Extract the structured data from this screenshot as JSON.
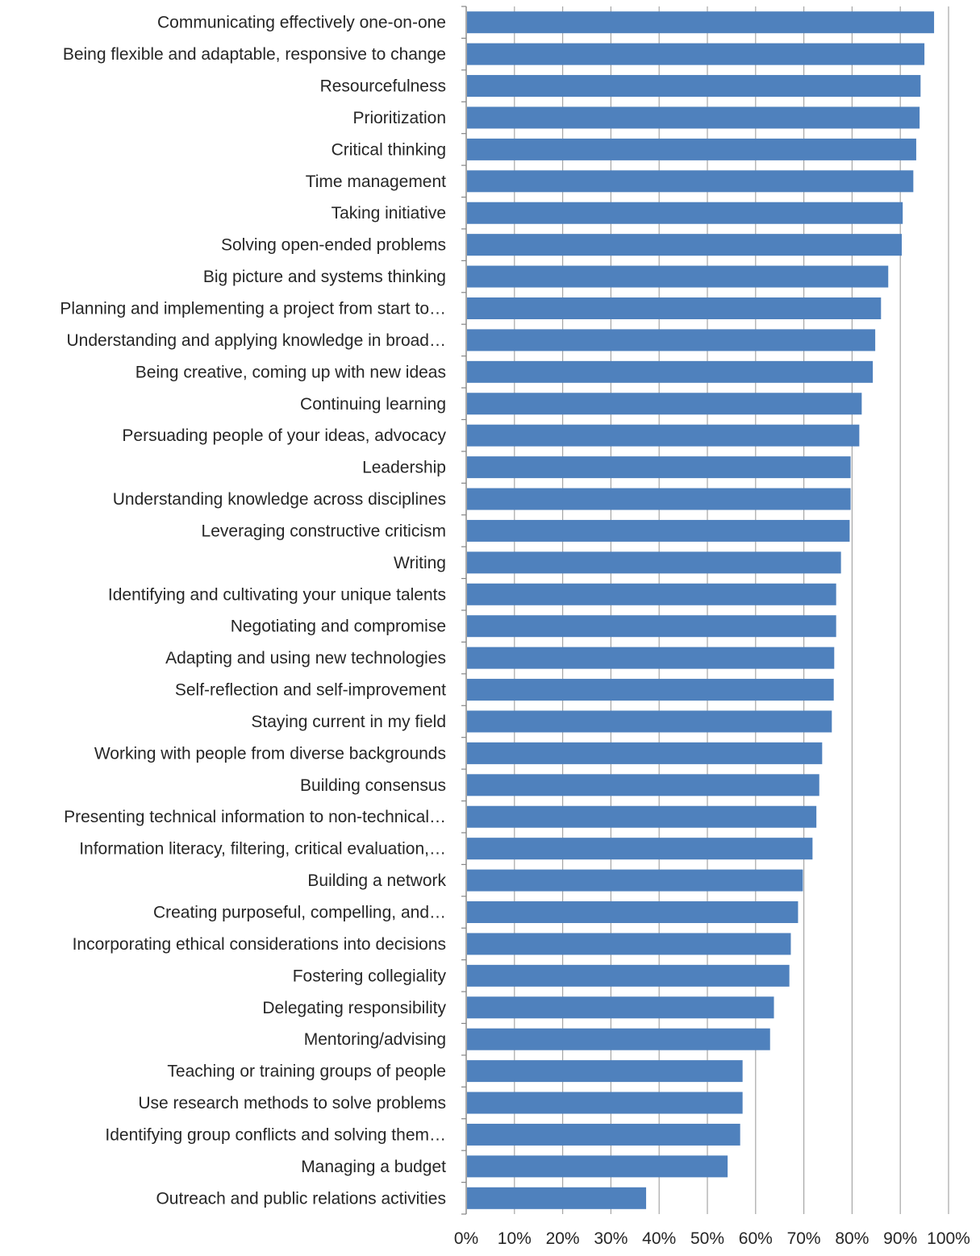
{
  "colors": {
    "bar": "#4F81BD",
    "grid": "#A6A6A6",
    "axis": "#868686",
    "text": "#262626"
  },
  "chart_data": {
    "type": "bar",
    "orientation": "horizontal",
    "title": "",
    "xlabel": "",
    "ylabel": "",
    "xlim": [
      0,
      100
    ],
    "x_ticks": [
      "0%",
      "10%",
      "20%",
      "30%",
      "40%",
      "50%",
      "60%",
      "70%",
      "80%",
      "90%",
      "100%"
    ],
    "grid": true,
    "legend": "none",
    "categories": [
      "Communicating effectively one-on-one",
      "Being flexible and adaptable, responsive to change",
      "Resourcefulness",
      "Prioritization",
      "Critical thinking",
      "Time management",
      "Taking initiative",
      "Solving open-ended problems",
      "Big picture and systems thinking",
      "Planning and implementing a project from start to…",
      "Understanding and applying knowledge in broad…",
      "Being creative, coming up with new ideas",
      "Continuing learning",
      "Persuading people of your ideas, advocacy",
      "Leadership",
      "Understanding knowledge across disciplines",
      "Leveraging constructive criticism",
      "Writing",
      "Identifying and cultivating your unique talents",
      "Negotiating and compromise",
      "Adapting and using new technologies",
      "Self-reflection and self-improvement",
      "Staying current in my field",
      "Working with people from diverse backgrounds",
      "Building consensus",
      "Presenting technical information to non-technical…",
      "Information literacy, filtering, critical evaluation,…",
      "Building a network",
      "Creating purposeful, compelling, and…",
      "Incorporating ethical considerations into decisions",
      "Fostering collegiality",
      "Delegating responsibility",
      "Mentoring/advising",
      "Teaching or training groups of people",
      "Use research methods to solve problems",
      "Identifying group conflicts and solving them…",
      "Managing a budget",
      "Outreach and public relations activities"
    ],
    "values": [
      97,
      95,
      94.2,
      94,
      93.3,
      92.7,
      90.5,
      90.3,
      87.5,
      86,
      84.8,
      84.3,
      82,
      81.5,
      79.7,
      79.7,
      79.5,
      77.7,
      76.7,
      76.7,
      76.3,
      76.2,
      75.8,
      73.8,
      73.2,
      72.6,
      71.8,
      69.8,
      68.8,
      67.3,
      67,
      63.8,
      63,
      57.3,
      57.3,
      56.8,
      54.2,
      37.3
    ]
  }
}
